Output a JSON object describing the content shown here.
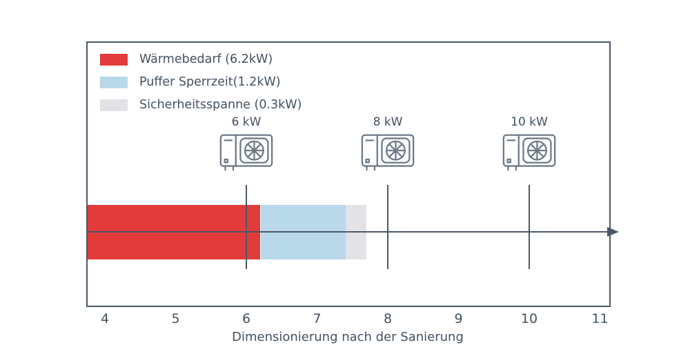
{
  "chart_data": {
    "type": "bar",
    "orientation": "horizontal-stacked",
    "xlabel": "Dimensionierung nach der Sanierung",
    "x_ticks": [
      4,
      5,
      6,
      7,
      8,
      9,
      10,
      11
    ],
    "xlim": [
      3.74,
      11.15
    ],
    "grid": false,
    "legend_position": "upper-left-inside",
    "segments": [
      {
        "name": "waermebedarf",
        "label": "Wärmebedarf (6.2kW)",
        "value": 6.2,
        "start": 3.74,
        "end": 6.2,
        "color": "#e23b3b"
      },
      {
        "name": "puffer-sperrzeit",
        "label": "Puffer Sperrzeit(1.2kW)",
        "value": 1.2,
        "start": 6.2,
        "end": 7.4,
        "color": "#b9d8ea"
      },
      {
        "name": "sicherheitsspanne",
        "label": "Sicherheitsspanne (0.3kW)",
        "value": 0.3,
        "start": 7.4,
        "end": 7.7,
        "color": "#e3e3e7"
      }
    ],
    "pumps": [
      {
        "label": "6 kW",
        "x": 6
      },
      {
        "label": "8 kW",
        "x": 8
      },
      {
        "label": "10 kW",
        "x": 10
      }
    ],
    "colors": {
      "axis": "#4a5866",
      "text": "#43515f",
      "icon": "#6e7a88",
      "background": "#ffffff"
    }
  }
}
